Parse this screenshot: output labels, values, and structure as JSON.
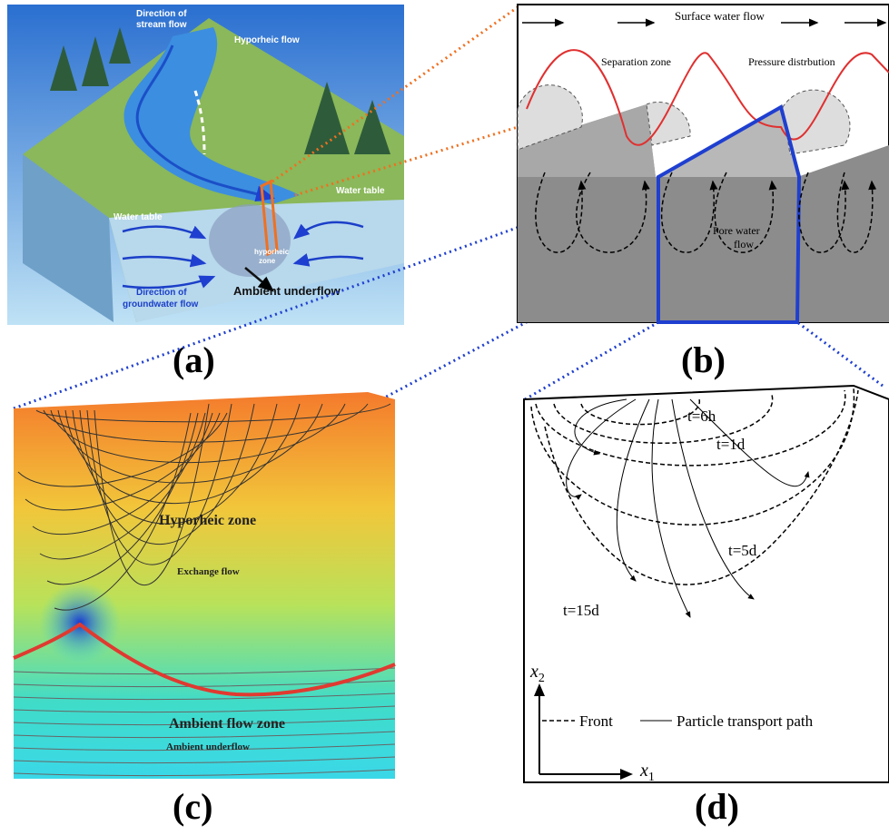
{
  "panels": [
    {
      "label": "(a)",
      "texts": {
        "stream_flow_1": "Direction of",
        "stream_flow_2": "stream flow",
        "hyporheic_flow": "Hyporheic flow",
        "water_table_right": "Water table",
        "water_table_left": "Water table",
        "zone_1": "hyporheic",
        "zone_2": "zone",
        "groundwater_1": "Direction of",
        "groundwater_2": "groundwater flow",
        "underflow": "Ambient underflow"
      }
    },
    {
      "label": "(b)",
      "texts": {
        "surface": "Surface water flow",
        "separation": "Separation zone",
        "pressure": "Pressure distrbution",
        "pore_1": "Pore water",
        "pore_2": "flow"
      }
    },
    {
      "label": "(c)",
      "texts": {
        "hyporheic": "Hyporheic zone",
        "exchange": "Exchange flow",
        "ambient_zone": "Ambient flow zone",
        "underflow": "Ambient underflow"
      }
    },
    {
      "label": "(d)",
      "texts": {
        "t1": "t=6h",
        "t2": "t=1d",
        "t3": "t=5d",
        "t4": "t=15d",
        "front": "Front",
        "path": "Particle transport path"
      },
      "axes": {
        "vertical": {
          "symbol": "x",
          "subscript": "2"
        },
        "horizontal": {
          "symbol": "x",
          "subscript": "1"
        }
      }
    }
  ]
}
